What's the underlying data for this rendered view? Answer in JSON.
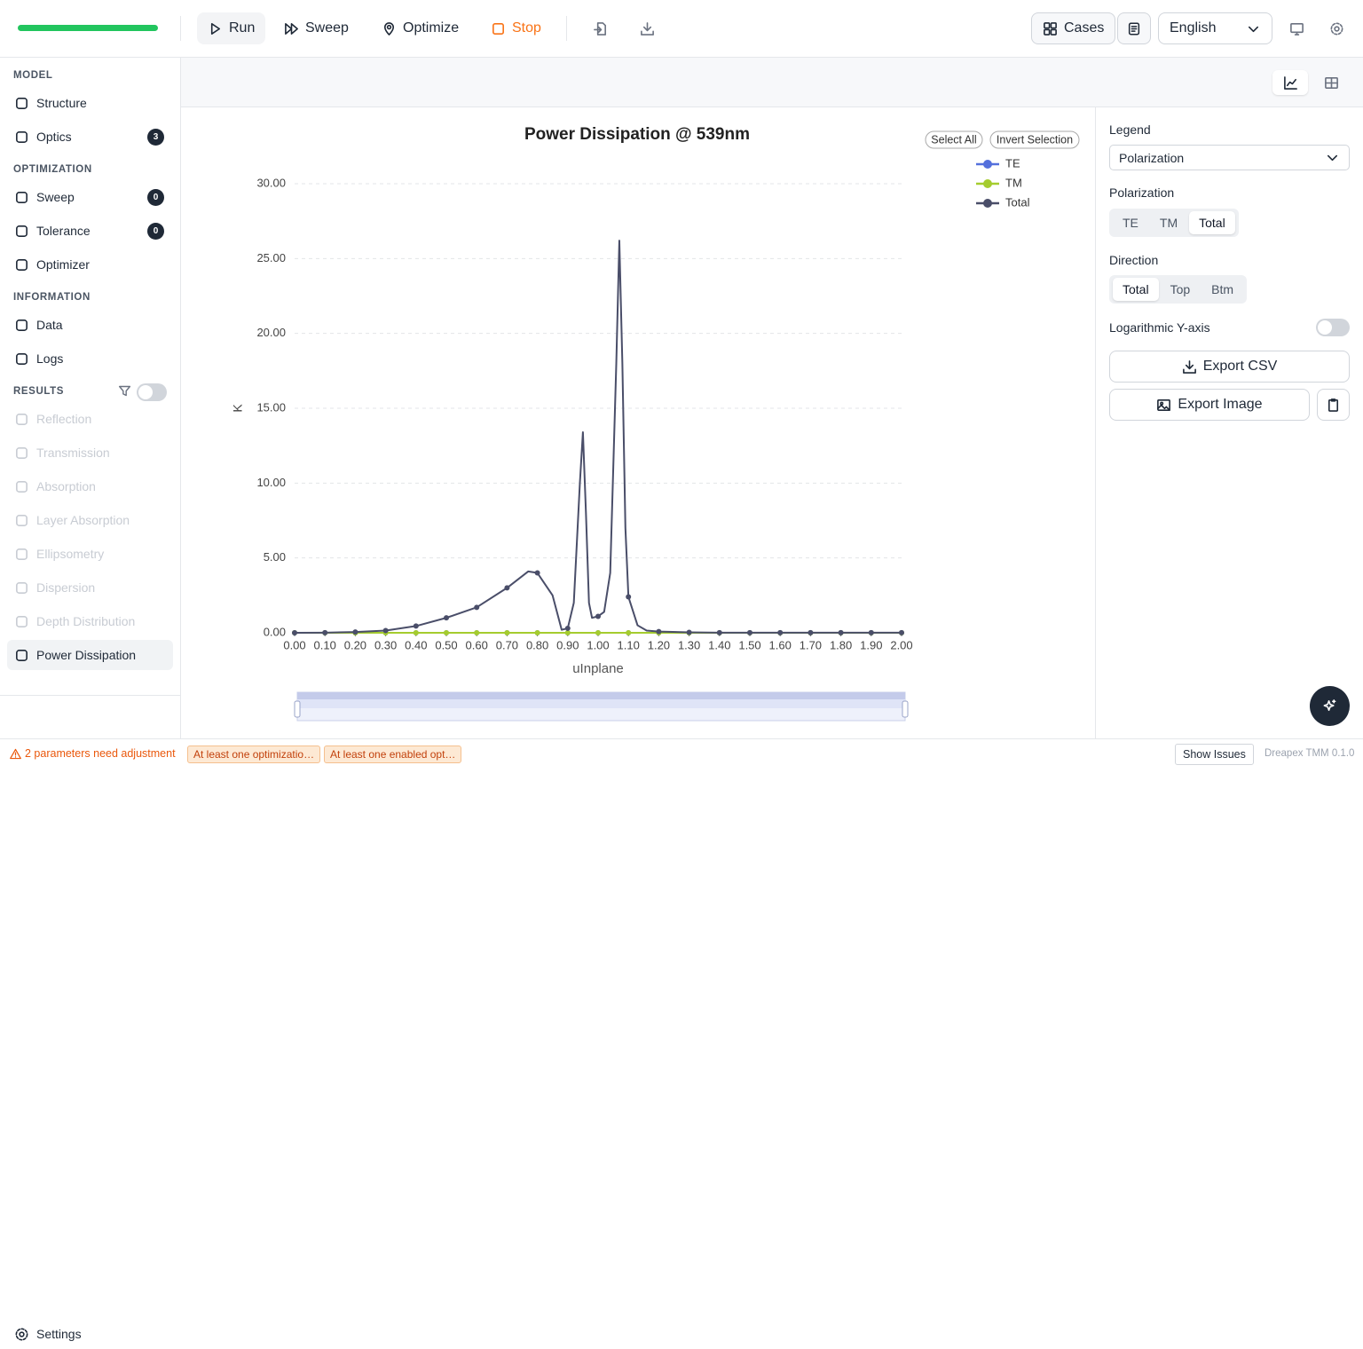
{
  "toolbar": {
    "run": "Run",
    "sweep": "Sweep",
    "optimize": "Optimize",
    "stop": "Stop",
    "cases": "Cases",
    "language": "English"
  },
  "sidebar": {
    "sections": [
      {
        "title": "MODEL",
        "items": [
          {
            "label": "Structure"
          },
          {
            "label": "Optics",
            "badge": 3
          }
        ]
      },
      {
        "title": "OPTIMIZATION",
        "items": [
          {
            "label": "Sweep",
            "badge": 0
          },
          {
            "label": "Tolerance",
            "badge": 0
          },
          {
            "label": "Optimizer"
          }
        ]
      },
      {
        "title": "INFORMATION",
        "items": [
          {
            "label": "Data"
          },
          {
            "label": "Logs"
          }
        ]
      },
      {
        "title": "RESULTS",
        "filter_toggle": false,
        "items": [
          {
            "label": "Reflection",
            "disabled": true
          },
          {
            "label": "Transmission",
            "disabled": true
          },
          {
            "label": "Absorption",
            "disabled": true
          },
          {
            "label": "Layer Absorption",
            "disabled": true
          },
          {
            "label": "Ellipsometry",
            "disabled": true
          },
          {
            "label": "Dispersion",
            "disabled": true
          },
          {
            "label": "Depth Distribution",
            "disabled": true
          },
          {
            "label": "Power Dissipation",
            "active": true
          }
        ]
      }
    ],
    "settings": "Settings"
  },
  "chart_data": {
    "type": "line",
    "title": "Power Dissipation @ 539nm",
    "x_label": "uInplane",
    "y_label": "K",
    "legend_buttons": [
      "Select All",
      "Invert Selection"
    ],
    "legend_position": "top-right",
    "grid": true,
    "xlim": [
      0,
      2
    ],
    "ylim": [
      0,
      30
    ],
    "xticks": [
      {
        "value": 0,
        "label": "0.00"
      },
      {
        "value": 0.1,
        "label": "0.10"
      },
      {
        "value": 0.2,
        "label": "0.20"
      },
      {
        "value": 0.3,
        "label": "0.30"
      },
      {
        "value": 0.4,
        "label": "0.40"
      },
      {
        "value": 0.5,
        "label": "0.50"
      },
      {
        "value": 0.6,
        "label": "0.60"
      },
      {
        "value": 0.7,
        "label": "0.70"
      },
      {
        "value": 0.8,
        "label": "0.80"
      },
      {
        "value": 0.9,
        "label": "0.90"
      },
      {
        "value": 1,
        "label": "1.00"
      },
      {
        "value": 1.1,
        "label": "1.10"
      },
      {
        "value": 1.2,
        "label": "1.20"
      },
      {
        "value": 1.3,
        "label": "1.30"
      },
      {
        "value": 1.4,
        "label": "1.40"
      },
      {
        "value": 1.5,
        "label": "1.50"
      },
      {
        "value": 1.6,
        "label": "1.60"
      },
      {
        "value": 1.7,
        "label": "1.70"
      },
      {
        "value": 1.8,
        "label": "1.80"
      },
      {
        "value": 1.9,
        "label": "1.90"
      },
      {
        "value": 2,
        "label": "2.00"
      }
    ],
    "yticks": [
      {
        "value": 0,
        "label": "0.00"
      },
      {
        "value": 5,
        "label": "5.00"
      },
      {
        "value": 10,
        "label": "10.00"
      },
      {
        "value": 15,
        "label": "15.00"
      },
      {
        "value": 20,
        "label": "20.00"
      },
      {
        "value": 25,
        "label": "25.00"
      },
      {
        "value": 30,
        "label": "30.00"
      }
    ],
    "x": [
      0,
      0.1,
      0.2,
      0.3,
      0.4,
      0.5,
      0.6,
      0.7,
      0.77,
      0.8,
      0.85,
      0.88,
      0.9,
      0.92,
      0.94,
      0.95,
      0.96,
      0.97,
      0.98,
      1.0,
      1.02,
      1.04,
      1.06,
      1.07,
      1.08,
      1.09,
      1.1,
      1.13,
      1.16,
      1.2,
      1.3,
      1.4,
      1.5,
      1.6,
      1.7,
      1.8,
      1.9,
      2.0
    ],
    "series": [
      {
        "name": "TE",
        "color": "#5470dc",
        "values": [
          0,
          0,
          0,
          0,
          0,
          0,
          0,
          0,
          0,
          0,
          0,
          0,
          0,
          0,
          0,
          0,
          0,
          0,
          0,
          0,
          0,
          0,
          0,
          0,
          0,
          0,
          0,
          0,
          0,
          0,
          0,
          0,
          0,
          0,
          0,
          0,
          0,
          0
        ]
      },
      {
        "name": "TM",
        "color": "#a5cc2e",
        "values": [
          0,
          0,
          0,
          0,
          0,
          0,
          0,
          0,
          0,
          0,
          0,
          0,
          0,
          0,
          0,
          0,
          0,
          0,
          0,
          0,
          0,
          0,
          0,
          0,
          0,
          0,
          0,
          0,
          0,
          0,
          0,
          0,
          0,
          0,
          0,
          0,
          0,
          0
        ]
      },
      {
        "name": "Total",
        "color": "#4a4e69",
        "values": [
          0,
          0.01,
          0.05,
          0.15,
          0.45,
          1.0,
          1.7,
          3.0,
          4.1,
          4.0,
          2.5,
          0.2,
          0.3,
          2,
          10,
          13.4,
          8,
          2,
          1.0,
          1.1,
          1.4,
          4,
          18,
          26.2,
          18,
          7,
          2.4,
          0.5,
          0.15,
          0.08,
          0.03,
          0.01,
          0.01,
          0.01,
          0.01,
          0.01,
          0.01,
          0.01
        ]
      }
    ]
  },
  "panel": {
    "legend_label": "Legend",
    "legend_select": "Polarization",
    "polarization_label": "Polarization",
    "polarization_options": [
      "TE",
      "TM",
      "Total"
    ],
    "polarization_selected": 2,
    "direction_label": "Direction",
    "direction_options": [
      "Total",
      "Top",
      "Btm"
    ],
    "direction_selected": 0,
    "log_label": "Logarithmic Y-axis",
    "log_enabled": false,
    "export_csv": "Export CSV",
    "export_image": "Export Image"
  },
  "status_bar": {
    "warning": "2 parameters need adjustment",
    "issues": [
      "At least one optimizatio…",
      "At least one enabled opt…"
    ],
    "show_issues": "Show Issues",
    "version": "Dreapex TMM 0.1.0"
  }
}
